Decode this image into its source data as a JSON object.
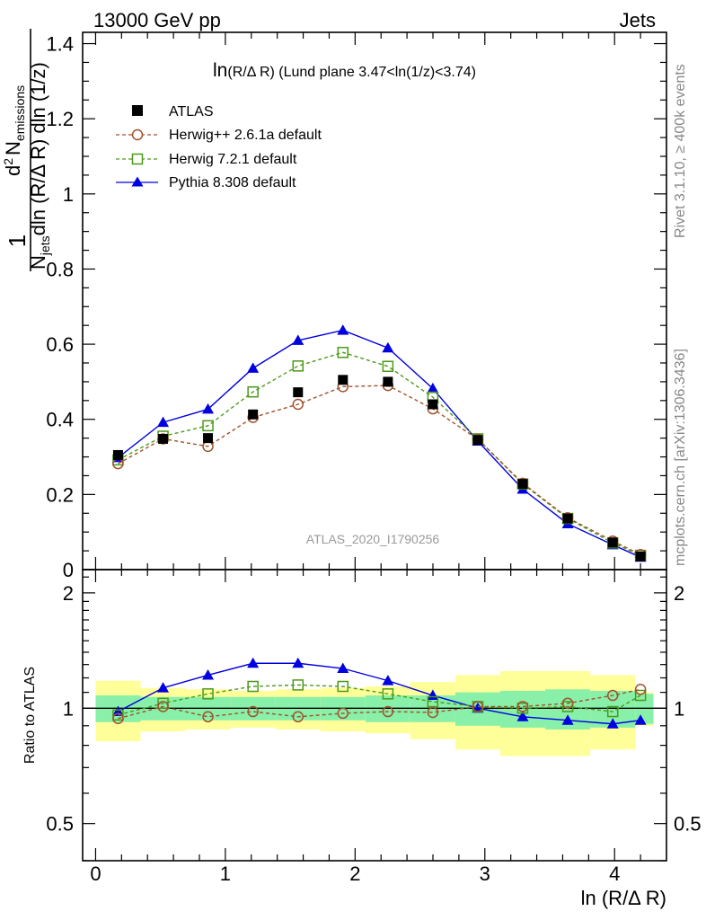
{
  "header": {
    "left": "13000 GeV pp",
    "right": "Jets"
  },
  "side_text": {
    "rivet": "Rivet 3.1.10, ≥ 400k events",
    "mcplots": "mcplots.cern.ch [arXiv:1306.3436]"
  },
  "watermark": "ATLAS_2020_I1790256",
  "plot_title": {
    "var": "ln",
    "rest": "(R/Δ R) (Lund plane 3.47<ln(1/z)<3.74)"
  },
  "axis_labels": {
    "x": "ln (R/Δ R)",
    "ratio_y": "Ratio to ATLAS",
    "main_y": {
      "one": "1",
      "njets_base": "N",
      "njets_sub": "jets",
      "den_rest": "dln (R/Δ R) dln (1/z)",
      "num_base": "d",
      "num_sup": "2",
      "num_n": "N",
      "num_sub": "emissions"
    }
  },
  "colors": {
    "atlas": "#000000",
    "herwigpp": "#a0522d",
    "herwig7": "#4c9a1a",
    "pythia": "#0000e0",
    "band_inner": "#88f0a8",
    "band_outer": "#ffff99"
  },
  "chart_data": {
    "type": "line",
    "title": "ln(R/Δ R) (Lund plane 3.47<ln(1/z)<3.74)",
    "xlim": [
      -0.1,
      4.4
    ],
    "main_ylim": [
      0,
      1.43
    ],
    "ratio_ylim": [
      0.4,
      2.3
    ],
    "ratio_log": true,
    "x_ticks": [
      "0",
      "1",
      "2",
      "3",
      "4"
    ],
    "main_y_ticks": [
      "0",
      "0.2",
      "0.4",
      "0.6",
      "0.8",
      "1",
      "1.2",
      "1.4"
    ],
    "ratio_y_ticks": [
      "0.5",
      "1",
      "2"
    ],
    "bin_edges": [
      0.0,
      0.3466,
      0.6931,
      1.0397,
      1.3863,
      1.7329,
      2.0794,
      2.426,
      2.7726,
      3.1192,
      3.4657,
      3.8123,
      4.1589,
      4.3
    ],
    "x": [
      0.173,
      0.52,
      0.866,
      1.213,
      1.56,
      1.906,
      2.253,
      2.599,
      2.946,
      3.292,
      3.639,
      3.986,
      4.2
    ],
    "series": [
      {
        "name": "ATLAS",
        "style": "data",
        "values": [
          0.305,
          0.348,
          0.35,
          0.413,
          0.472,
          0.505,
          0.5,
          0.44,
          0.345,
          0.228,
          0.136,
          0.072,
          0.035
        ],
        "ratio": [
          1,
          1,
          1,
          1,
          1,
          1,
          1,
          1,
          1,
          1,
          1,
          1,
          1
        ]
      },
      {
        "name": "Herwig++ 2.6.1a default",
        "style": "dashed-circle",
        "values": [
          0.282,
          0.348,
          0.328,
          0.405,
          0.44,
          0.487,
          0.49,
          0.428,
          0.347,
          0.23,
          0.138,
          0.076,
          0.04
        ],
        "ratio": [
          0.94,
          1.01,
          0.95,
          0.98,
          0.95,
          0.97,
          0.98,
          0.975,
          1.01,
          1.01,
          1.03,
          1.08,
          1.12
        ]
      },
      {
        "name": "Herwig 7.2.1 default",
        "style": "dashed-square",
        "values": [
          0.292,
          0.355,
          0.383,
          0.473,
          0.542,
          0.578,
          0.541,
          0.459,
          0.348,
          0.228,
          0.136,
          0.071,
          0.038
        ],
        "ratio": [
          0.96,
          1.03,
          1.09,
          1.14,
          1.15,
          1.14,
          1.09,
          1.04,
          1.01,
          1.0,
          1.01,
          0.98,
          1.08
        ]
      },
      {
        "name": "Pythia 8.308 default",
        "style": "solid-triangle",
        "values": [
          0.298,
          0.392,
          0.427,
          0.536,
          0.61,
          0.637,
          0.59,
          0.482,
          0.342,
          0.214,
          0.122,
          0.066,
          0.033
        ],
        "ratio": [
          0.98,
          1.13,
          1.22,
          1.31,
          1.31,
          1.27,
          1.18,
          1.08,
          1.0,
          0.95,
          0.93,
          0.91,
          0.93
        ]
      }
    ],
    "uncertainty_band": {
      "inner": [
        0.08,
        0.07,
        0.07,
        0.07,
        0.07,
        0.07,
        0.08,
        0.08,
        0.1,
        0.11,
        0.12,
        0.11,
        0.09
      ],
      "outer": [
        0.18,
        0.13,
        0.12,
        0.11,
        0.12,
        0.13,
        0.14,
        0.17,
        0.22,
        0.25,
        0.25,
        0.22,
        0.1
      ]
    }
  }
}
